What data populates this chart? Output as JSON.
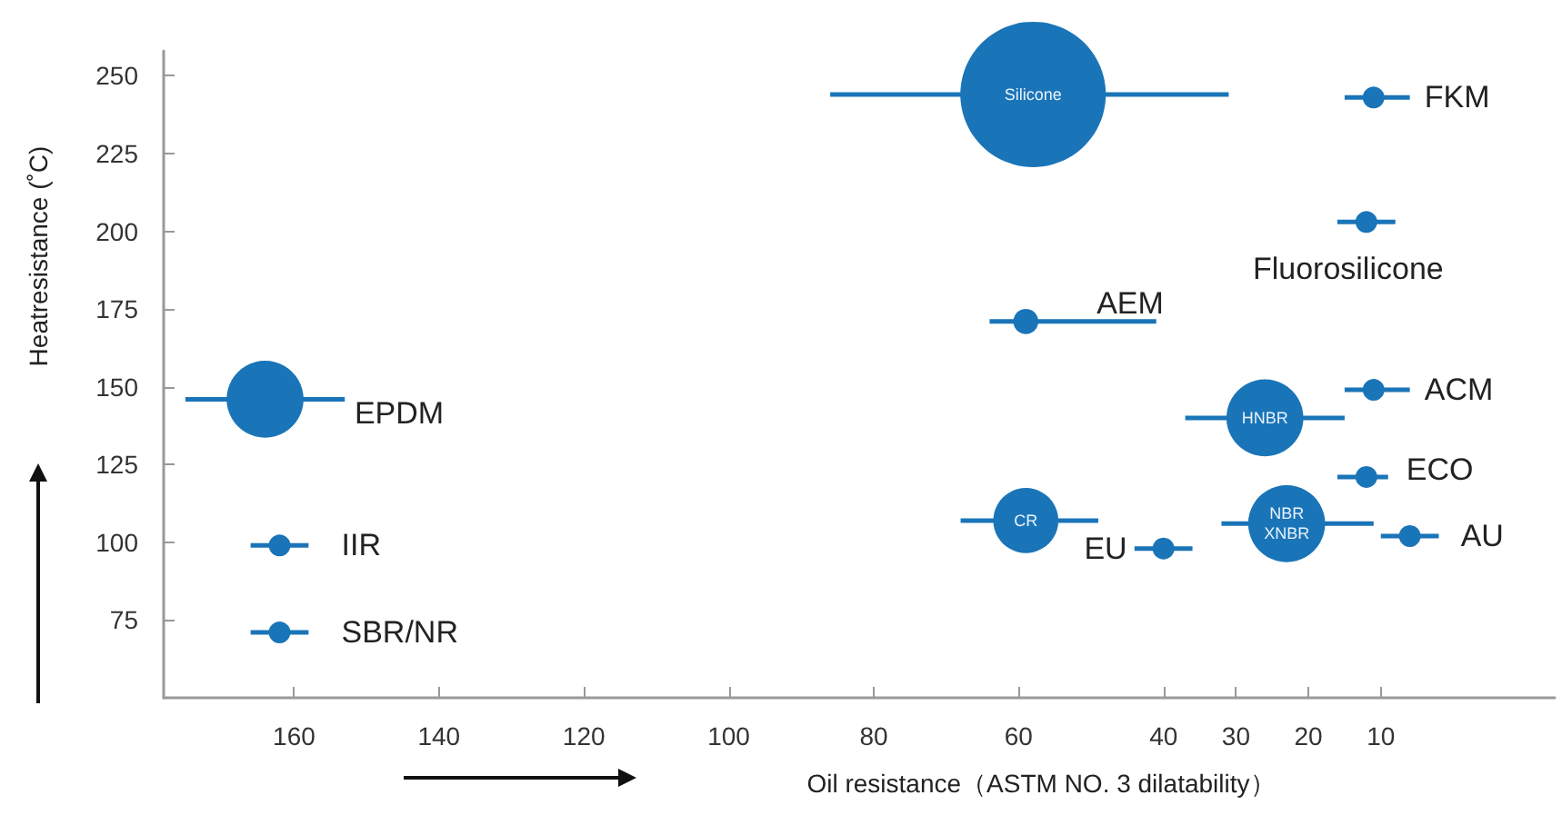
{
  "chart_data": {
    "type": "bubble",
    "xlabel": "Oil resistance（ASTM NO. 3 dilatability）",
    "ylabel": "Heatresistance (˚C)",
    "xlim": [
      178,
      -14
    ],
    "xticks": [
      160,
      140,
      120,
      100,
      80,
      60,
      40,
      30,
      20,
      10
    ],
    "ylim": [
      50,
      258
    ],
    "yticks": [
      75,
      100,
      125,
      150,
      175,
      200,
      225,
      250
    ],
    "series": [
      {
        "name": "Silicone",
        "color": "#1a74b8",
        "x": [
          58
        ],
        "values": [
          244
        ],
        "sizes": [
          1
        ],
        "xerrors": [
          [
            31,
            86
          ]
        ]
      },
      {
        "name": "FKM",
        "color": "#1a74b8",
        "x": [
          11
        ],
        "values": [
          243
        ],
        "sizes": [
          0.0225
        ],
        "xerrors": [
          [
            6,
            15
          ]
        ]
      },
      {
        "name": "Fluorosilicone",
        "color": "#1a74b8",
        "x": [
          12
        ],
        "values": [
          203
        ],
        "sizes": [
          0.0225
        ],
        "xerrors": [
          [
            8,
            16
          ]
        ]
      },
      {
        "name": "AEM",
        "color": "#1a74b8",
        "x": [
          59
        ],
        "values": [
          171
        ],
        "sizes": [
          0.03
        ],
        "xerrors": [
          [
            41,
            64
          ]
        ]
      },
      {
        "name": "ACM",
        "color": "#1a74b8",
        "x": [
          11
        ],
        "values": [
          149
        ],
        "sizes": [
          0.0225
        ],
        "xerrors": [
          [
            6,
            15
          ]
        ]
      },
      {
        "name": "HNBR",
        "color": "#1a74b8",
        "x": [
          26
        ],
        "values": [
          140
        ],
        "sizes": [
          0.28
        ],
        "xerrors": [
          [
            15,
            37
          ]
        ]
      },
      {
        "name": "ECO",
        "color": "#1a74b8",
        "x": [
          12
        ],
        "values": [
          121
        ],
        "sizes": [
          0.0225
        ],
        "xerrors": [
          [
            9,
            16
          ]
        ]
      },
      {
        "name": "CR",
        "color": "#1a74b8",
        "x": [
          59
        ],
        "values": [
          107
        ],
        "sizes": [
          0.2
        ],
        "xerrors": [
          [
            49,
            68
          ]
        ]
      },
      {
        "name": "EU",
        "color": "#1a74b8",
        "x": [
          40
        ],
        "values": [
          98
        ],
        "sizes": [
          0.0225
        ],
        "xerrors": [
          [
            36,
            44
          ]
        ]
      },
      {
        "name": "NBR\nXNBR",
        "color": "#1a74b8",
        "x": [
          23
        ],
        "values": [
          106
        ],
        "sizes": [
          0.28
        ],
        "xerrors": [
          [
            11,
            32
          ]
        ]
      },
      {
        "name": "AU",
        "color": "#1a74b8",
        "x": [
          6
        ],
        "values": [
          102
        ],
        "sizes": [
          0.0225
        ],
        "xerrors": [
          [
            2,
            10
          ]
        ]
      },
      {
        "name": "EPDM",
        "color": "#1a74b8",
        "x": [
          164
        ],
        "values": [
          146
        ],
        "sizes": [
          0.28
        ],
        "xerrors": [
          [
            153,
            175
          ]
        ]
      },
      {
        "name": "IIR",
        "color": "#1a74b8",
        "x": [
          162
        ],
        "values": [
          99
        ],
        "sizes": [
          0.0225
        ],
        "xerrors": [
          [
            158,
            166
          ]
        ]
      },
      {
        "name": "SBR/NR",
        "color": "#1a74b8",
        "x": [
          162
        ],
        "values": [
          71
        ],
        "sizes": [
          0.0225
        ],
        "xerrors": [
          [
            158,
            166
          ]
        ]
      }
    ]
  }
}
